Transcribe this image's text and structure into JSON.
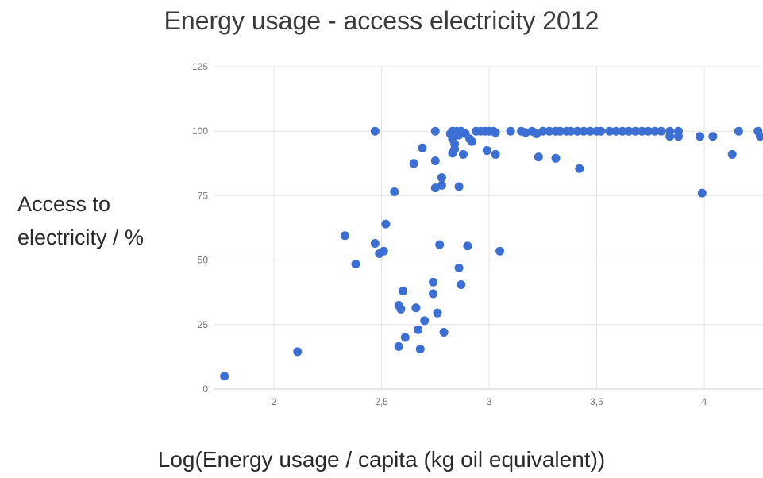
{
  "chart_data": {
    "type": "scatter",
    "title": "Energy usage - access electricity 2012",
    "xlabel": "Log(Energy usage / capita (kg oil equivalent))",
    "ylabel_lines": [
      "Access to",
      "electricity / %"
    ],
    "xlim": [
      1.75,
      4.27
    ],
    "ylim": [
      0,
      125
    ],
    "x_ticks": [
      2,
      2.5,
      3,
      3.5,
      4
    ],
    "x_tick_labels": [
      "2",
      "2,5",
      "3",
      "3,5",
      "4"
    ],
    "y_ticks": [
      0,
      25,
      50,
      75,
      100,
      125
    ],
    "y_tick_labels": [
      "0",
      "25",
      "50",
      "75",
      "100",
      "125"
    ],
    "grid": true,
    "legend": "none",
    "point_color": "#3b6fd4",
    "points": [
      [
        1.77,
        5
      ],
      [
        2.11,
        14.5
      ],
      [
        2.33,
        59.5
      ],
      [
        2.38,
        48.5
      ],
      [
        2.47,
        56.5
      ],
      [
        2.47,
        100
      ],
      [
        2.49,
        52.5
      ],
      [
        2.51,
        53.5
      ],
      [
        2.52,
        64
      ],
      [
        2.56,
        76.5
      ],
      [
        2.58,
        16.5
      ],
      [
        2.58,
        32.5
      ],
      [
        2.59,
        31
      ],
      [
        2.6,
        38
      ],
      [
        2.61,
        20
      ],
      [
        2.65,
        87.5
      ],
      [
        2.66,
        31.5
      ],
      [
        2.67,
        23
      ],
      [
        2.68,
        15.5
      ],
      [
        2.69,
        93.5
      ],
      [
        2.7,
        26.5
      ],
      [
        2.74,
        41.5
      ],
      [
        2.74,
        37
      ],
      [
        2.75,
        88.5
      ],
      [
        2.75,
        78
      ],
      [
        2.76,
        29.5
      ],
      [
        2.77,
        56
      ],
      [
        2.78,
        82
      ],
      [
        2.78,
        79
      ],
      [
        2.79,
        22
      ],
      [
        2.75,
        100
      ],
      [
        2.82,
        99
      ],
      [
        2.83,
        100
      ],
      [
        2.83,
        97
      ],
      [
        2.84,
        95
      ],
      [
        2.84,
        93
      ],
      [
        2.83,
        91.5
      ],
      [
        2.85,
        100
      ],
      [
        2.86,
        98.5
      ],
      [
        2.87,
        100
      ],
      [
        2.86,
        78.5
      ],
      [
        2.86,
        47
      ],
      [
        2.87,
        40.5
      ],
      [
        2.88,
        91
      ],
      [
        2.89,
        99
      ],
      [
        2.9,
        55.5
      ],
      [
        2.91,
        97
      ],
      [
        2.92,
        96
      ],
      [
        2.94,
        100
      ],
      [
        2.96,
        100
      ],
      [
        2.98,
        100
      ],
      [
        2.99,
        92.5
      ],
      [
        3.0,
        100
      ],
      [
        3.02,
        100
      ],
      [
        3.03,
        99.5
      ],
      [
        3.03,
        91
      ],
      [
        3.05,
        53.5
      ],
      [
        3.1,
        100
      ],
      [
        3.15,
        100
      ],
      [
        3.17,
        99.5
      ],
      [
        3.2,
        100
      ],
      [
        3.22,
        99
      ],
      [
        3.23,
        90
      ],
      [
        3.25,
        100
      ],
      [
        3.28,
        100
      ],
      [
        3.31,
        100
      ],
      [
        3.31,
        89.5
      ],
      [
        3.33,
        100
      ],
      [
        3.36,
        100
      ],
      [
        3.38,
        100
      ],
      [
        3.41,
        100
      ],
      [
        3.42,
        85.5
      ],
      [
        3.44,
        100
      ],
      [
        3.47,
        100
      ],
      [
        3.5,
        100
      ],
      [
        3.52,
        100
      ],
      [
        3.56,
        100
      ],
      [
        3.59,
        100
      ],
      [
        3.62,
        100
      ],
      [
        3.65,
        100
      ],
      [
        3.68,
        100
      ],
      [
        3.71,
        100
      ],
      [
        3.74,
        100
      ],
      [
        3.77,
        100
      ],
      [
        3.8,
        100
      ],
      [
        3.84,
        100
      ],
      [
        3.84,
        98
      ],
      [
        3.88,
        100
      ],
      [
        3.88,
        98
      ],
      [
        3.98,
        98
      ],
      [
        3.99,
        76
      ],
      [
        4.04,
        98
      ],
      [
        4.13,
        91
      ],
      [
        4.16,
        100
      ],
      [
        4.25,
        100
      ],
      [
        4.26,
        98
      ]
    ]
  }
}
